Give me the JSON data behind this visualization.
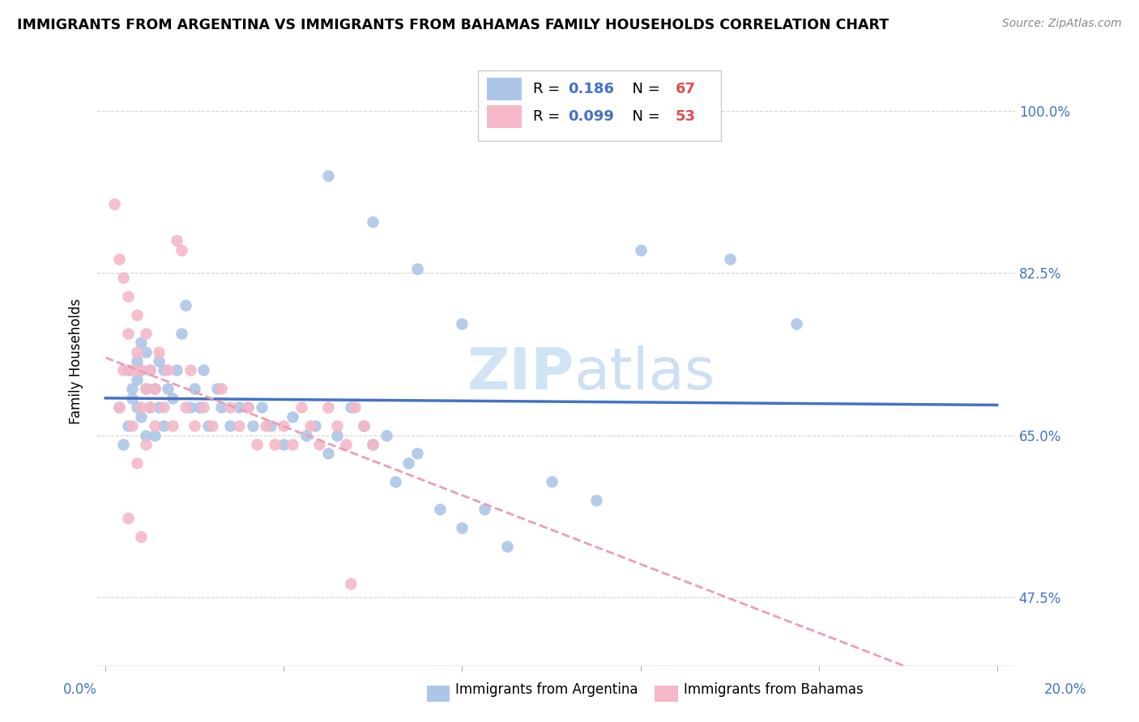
{
  "title": "IMMIGRANTS FROM ARGENTINA VS IMMIGRANTS FROM BAHAMAS FAMILY HOUSEHOLDS CORRELATION CHART",
  "source": "Source: ZipAtlas.com",
  "ylabel": "Family Households",
  "yticks_labels": [
    "47.5%",
    "65.0%",
    "82.5%",
    "100.0%"
  ],
  "ytick_vals": [
    0.475,
    0.65,
    0.825,
    1.0
  ],
  "xlim": [
    0.0,
    0.2
  ],
  "ylim": [
    0.4,
    1.06
  ],
  "argentina_color": "#adc6e8",
  "bahamas_color": "#f5b8c8",
  "argentina_line_color": "#4472c4",
  "bahamas_line_color": "#e8a0b5",
  "watermark_color": "#d0e4f5",
  "grid_color": "#d0d0d0",
  "tick_color": "#4472c4",
  "arg_R": "0.186",
  "arg_N": "67",
  "bah_R": "0.099",
  "bah_N": "53",
  "argentina_scatter_x": [
    0.003,
    0.004,
    0.005,
    0.005,
    0.006,
    0.006,
    0.007,
    0.007,
    0.007,
    0.008,
    0.008,
    0.008,
    0.009,
    0.009,
    0.009,
    0.01,
    0.01,
    0.011,
    0.011,
    0.012,
    0.012,
    0.013,
    0.013,
    0.014,
    0.015,
    0.016,
    0.017,
    0.018,
    0.019,
    0.02,
    0.021,
    0.022,
    0.023,
    0.025,
    0.026,
    0.028,
    0.03,
    0.032,
    0.033,
    0.035,
    0.037,
    0.04,
    0.042,
    0.045,
    0.047,
    0.05,
    0.052,
    0.055,
    0.058,
    0.06,
    0.063,
    0.065,
    0.068,
    0.07,
    0.075,
    0.08,
    0.085,
    0.09,
    0.1,
    0.11,
    0.12,
    0.14,
    0.155,
    0.05,
    0.06,
    0.07,
    0.08
  ],
  "argentina_scatter_y": [
    0.68,
    0.64,
    0.72,
    0.66,
    0.7,
    0.69,
    0.71,
    0.73,
    0.68,
    0.72,
    0.67,
    0.75,
    0.7,
    0.65,
    0.74,
    0.68,
    0.72,
    0.7,
    0.65,
    0.73,
    0.68,
    0.72,
    0.66,
    0.7,
    0.69,
    0.72,
    0.76,
    0.79,
    0.68,
    0.7,
    0.68,
    0.72,
    0.66,
    0.7,
    0.68,
    0.66,
    0.68,
    0.68,
    0.66,
    0.68,
    0.66,
    0.64,
    0.67,
    0.65,
    0.66,
    0.63,
    0.65,
    0.68,
    0.66,
    0.64,
    0.65,
    0.6,
    0.62,
    0.63,
    0.57,
    0.55,
    0.57,
    0.53,
    0.6,
    0.58,
    0.85,
    0.84,
    0.77,
    0.93,
    0.88,
    0.83,
    0.77
  ],
  "bahamas_scatter_x": [
    0.002,
    0.003,
    0.003,
    0.004,
    0.004,
    0.005,
    0.005,
    0.006,
    0.006,
    0.007,
    0.007,
    0.007,
    0.008,
    0.008,
    0.009,
    0.009,
    0.009,
    0.01,
    0.01,
    0.011,
    0.011,
    0.012,
    0.013,
    0.014,
    0.015,
    0.016,
    0.017,
    0.018,
    0.019,
    0.02,
    0.022,
    0.024,
    0.026,
    0.028,
    0.03,
    0.032,
    0.034,
    0.036,
    0.038,
    0.04,
    0.042,
    0.044,
    0.046,
    0.048,
    0.05,
    0.052,
    0.054,
    0.056,
    0.058,
    0.06,
    0.005,
    0.008,
    0.055
  ],
  "bahamas_scatter_y": [
    0.9,
    0.84,
    0.68,
    0.82,
    0.72,
    0.8,
    0.76,
    0.72,
    0.66,
    0.74,
    0.62,
    0.78,
    0.68,
    0.72,
    0.7,
    0.64,
    0.76,
    0.68,
    0.72,
    0.66,
    0.7,
    0.74,
    0.68,
    0.72,
    0.66,
    0.86,
    0.85,
    0.68,
    0.72,
    0.66,
    0.68,
    0.66,
    0.7,
    0.68,
    0.66,
    0.68,
    0.64,
    0.66,
    0.64,
    0.66,
    0.64,
    0.68,
    0.66,
    0.64,
    0.68,
    0.66,
    0.64,
    0.68,
    0.66,
    0.64,
    0.56,
    0.54,
    0.49
  ]
}
